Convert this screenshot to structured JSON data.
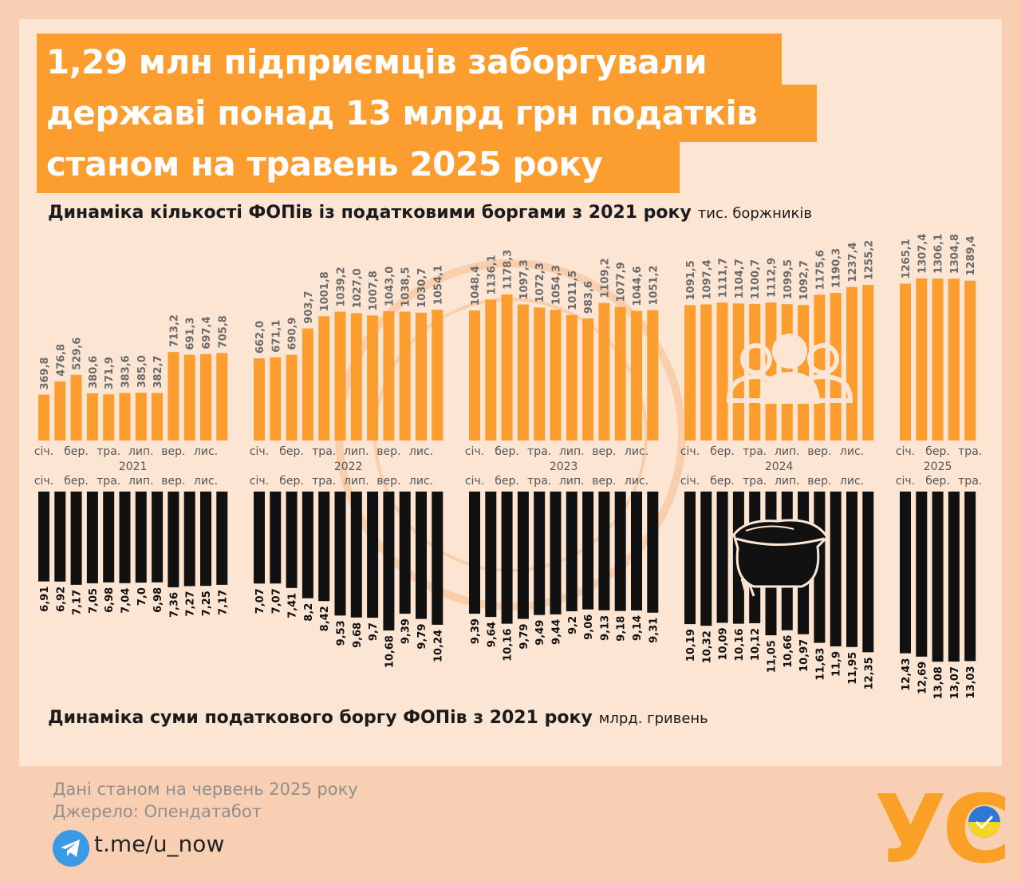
{
  "header": {
    "title_lines": [
      "1,29 млн підприємців заборгували",
      "державі понад 13 млрд грн податків",
      "станом на травень 2025 року"
    ]
  },
  "subtitles": {
    "count": {
      "main": "Динаміка кількості ФОПів із податковими боргами з 2021 року",
      "unit": "тис. боржників"
    },
    "debt": {
      "main": "Динаміка суми податкового боргу ФОПів з 2021 року",
      "unit": "млрд. гривень"
    }
  },
  "footer": {
    "date_note": "Дані станом на червень 2025 року",
    "source": "Джерело: Опендатабот",
    "telegram": "t.me/u_now"
  },
  "logo": {
    "text": "УС"
  },
  "colors": {
    "accent": "#fb9d2f",
    "bar_dark": "#111111",
    "background": "#fde5d4",
    "label_gray": "#666666"
  },
  "icons": [
    "people-icon",
    "money-bag-icon",
    "telegram-icon"
  ],
  "chart_data": [
    {
      "type": "bar",
      "title": "Динаміка кількості ФОПів із податковими боргами з 2021 року",
      "ylabel": "тис. боржників",
      "groups": [
        {
          "year": "2021",
          "month_labels": [
            "січ.",
            "бер.",
            "тра.",
            "лип.",
            "вер.",
            "лис."
          ],
          "values": [
            "369,8",
            "476,8",
            "529,6",
            "380,6",
            "371,9",
            "383,6",
            "385,0",
            "382,7",
            "713,2",
            "691,3",
            "697,4",
            "705,8"
          ]
        },
        {
          "year": "2022",
          "month_labels": [
            "січ.",
            "бер.",
            "тра.",
            "лип.",
            "вер.",
            "лис."
          ],
          "values": [
            "662,0",
            "671,1",
            "690,9",
            "903,7",
            "1001,8",
            "1039,2",
            "1027,0",
            "1007,8",
            "1043,0",
            "1038,5",
            "1030,7",
            "1054,1"
          ]
        },
        {
          "year": "2023",
          "month_labels": [
            "січ.",
            "бер.",
            "тра.",
            "лип.",
            "вер.",
            "лис."
          ],
          "values": [
            "1048,4",
            "1136,1",
            "1178,3",
            "1097,3",
            "1072,3",
            "1054,3",
            "1011,5",
            "983,6",
            "1109,2",
            "1077,9",
            "1044,6",
            "1051,2"
          ]
        },
        {
          "year": "2024",
          "month_labels": [
            "січ.",
            "бер.",
            "тра.",
            "лип.",
            "вер.",
            "лис."
          ],
          "values": [
            "1091,5",
            "1097,4",
            "1111,7",
            "1104,7",
            "1100,7",
            "1112,9",
            "1099,5",
            "1092,7",
            "1175,6",
            "1190,3",
            "1237,4",
            "1255,2"
          ]
        },
        {
          "year": "2025",
          "month_labels": [
            "січ.",
            "бер.",
            "тра."
          ],
          "values": [
            "1265,1",
            "1307,4",
            "1306,1",
            "1304,8",
            "1289,4"
          ]
        }
      ]
    },
    {
      "type": "bar",
      "title": "Динаміка суми податкового боргу ФОПів з 2021 року",
      "ylabel": "млрд. гривень",
      "orientation": "downward",
      "groups": [
        {
          "month_labels": [
            "січ.",
            "бер.",
            "тра.",
            "лип.",
            "вер.",
            "лис."
          ],
          "values": [
            "6,91",
            "6,92",
            "7,17",
            "7,05",
            "6,98",
            "7,04",
            "7,0",
            "6,98",
            "7,36",
            "7,27",
            "7,25",
            "7,17"
          ]
        },
        {
          "month_labels": [
            "січ.",
            "бер.",
            "тра.",
            "лип.",
            "вер.",
            "лис."
          ],
          "values": [
            "7,07",
            "7,07",
            "7,41",
            "8,2",
            "8,42",
            "9,53",
            "9,68",
            "9,7",
            "10,68",
            "9,39",
            "9,79",
            "10,24"
          ]
        },
        {
          "month_labels": [
            "січ.",
            "бер.",
            "тра.",
            "лип.",
            "вер.",
            "лис."
          ],
          "values": [
            "9,39",
            "9,64",
            "10,16",
            "9,79",
            "9,49",
            "9,44",
            "9,2",
            "9,06",
            "9,13",
            "9,18",
            "9,14",
            "9,31"
          ]
        },
        {
          "month_labels": [
            "січ.",
            "бер.",
            "тра.",
            "лип.",
            "вер.",
            "лис."
          ],
          "values": [
            "10,19",
            "10,32",
            "10,09",
            "10,16",
            "10,12",
            "11,05",
            "10,66",
            "10,97",
            "11,63",
            "11,9",
            "11,95",
            "12,35"
          ]
        },
        {
          "month_labels": [
            "січ.",
            "бер.",
            "тра."
          ],
          "values": [
            "12,43",
            "12,69",
            "13,08",
            "13,07",
            "13,03"
          ]
        }
      ]
    }
  ]
}
